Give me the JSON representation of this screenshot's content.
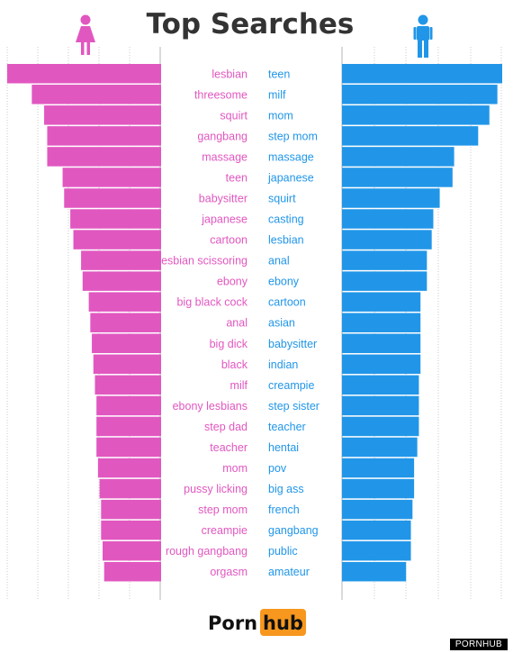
{
  "chart_data": {
    "type": "bar",
    "title": "Top Searches",
    "series": [
      {
        "color": "#e157c0",
        "icon": "female-icon",
        "values": [
          100,
          84,
          76,
          74,
          74,
          64,
          63,
          59,
          57,
          52,
          51,
          47,
          46,
          45,
          44,
          43,
          42,
          42,
          42,
          41,
          40,
          39,
          39,
          38,
          37
        ],
        "categories": [
          "lesbian",
          "threesome",
          "squirt",
          "gangbang",
          "massage",
          "teen",
          "babysitter",
          "japanese",
          "cartoon",
          "lesbian scissoring",
          "ebony",
          "big black cock",
          "anal",
          "big dick",
          "black",
          "milf",
          "ebony lesbians",
          "step dad",
          "teacher",
          "mom",
          "pussy licking",
          "step mom",
          "creampie",
          "rough gangbang",
          "orgasm"
        ]
      },
      {
        "color": "#2196e8",
        "icon": "male-icon",
        "values": [
          100,
          97,
          92,
          85,
          70,
          69,
          61,
          57,
          56,
          53,
          53,
          49,
          49,
          49,
          49,
          48,
          48,
          48,
          47,
          45,
          45,
          44,
          43,
          43,
          40
        ],
        "categories": [
          "teen",
          "milf",
          "mom",
          "step mom",
          "massage",
          "japanese",
          "squirt",
          "casting",
          "lesbian",
          "anal",
          "ebony",
          "cartoon",
          "asian",
          "babysitter",
          "indian",
          "creampie",
          "step sister",
          "teacher",
          "hentai",
          "pov",
          "big ass",
          "french",
          "gangbang",
          "public",
          "amateur"
        ]
      }
    ],
    "grid": true,
    "xlim": [
      0,
      100
    ]
  },
  "brand": {
    "logo_left": "Porn",
    "logo_right": "hub",
    "logo_accent": "#f7971e",
    "watermark": "PORNHUB"
  }
}
